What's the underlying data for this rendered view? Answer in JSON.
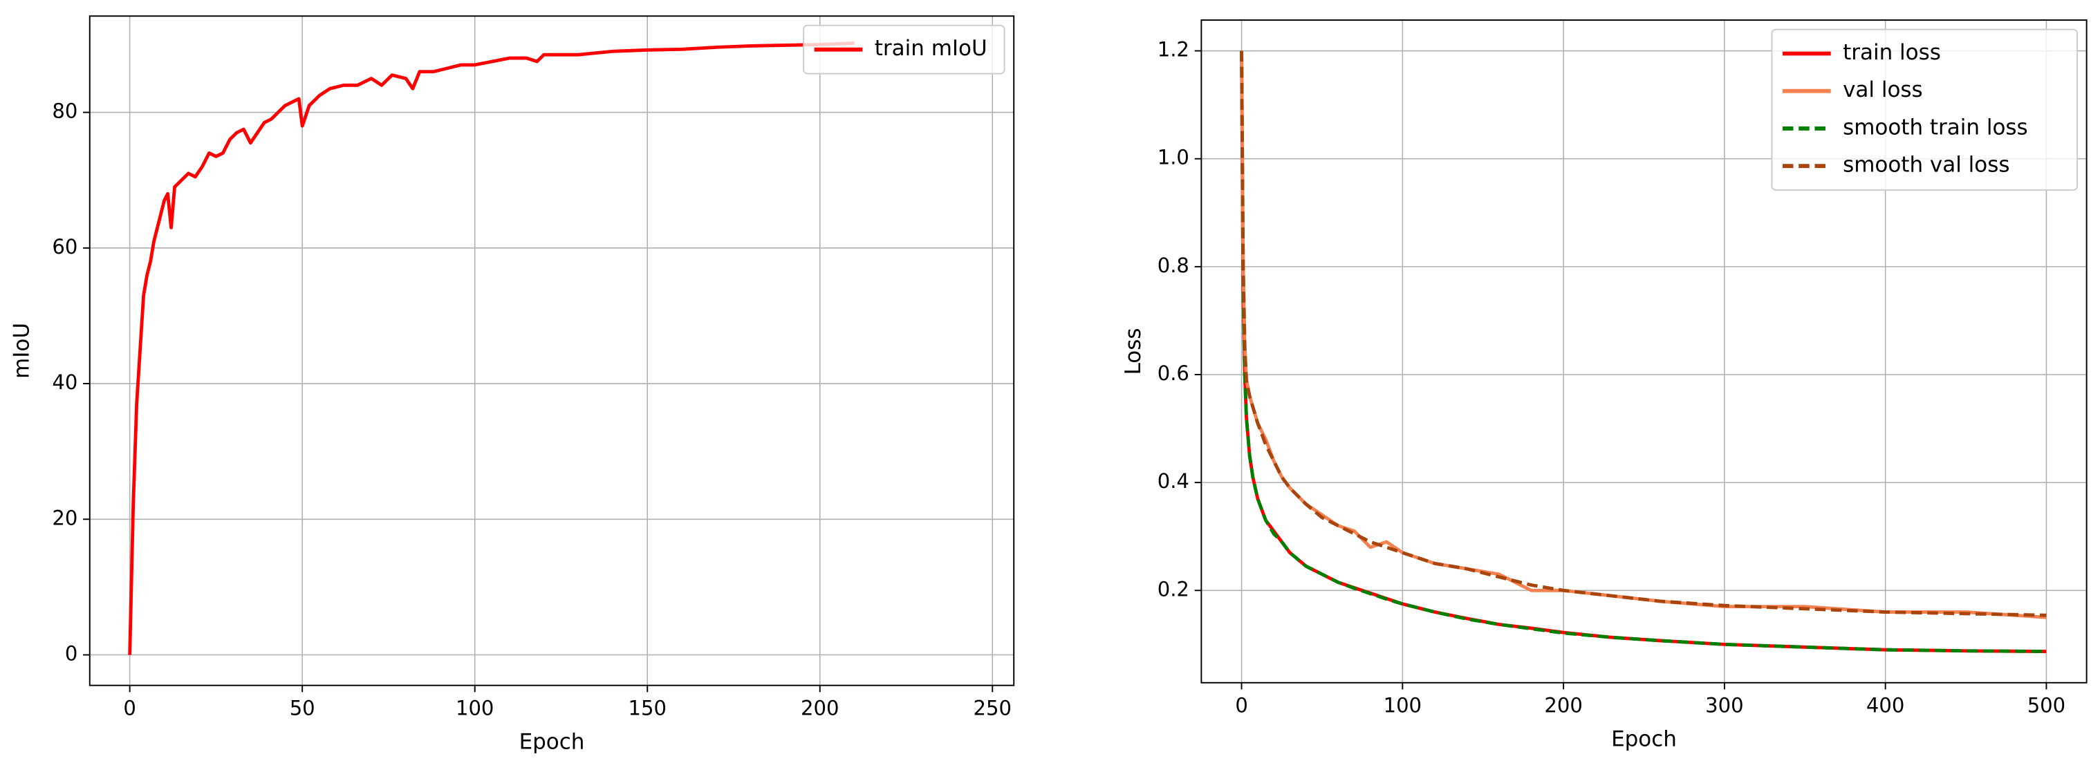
{
  "chart_data": [
    {
      "type": "line",
      "xlabel": "Epoch",
      "ylabel": "mIoU",
      "xlim": [
        -11.6,
        256.2
      ],
      "ylim": [
        -4.5,
        94.2
      ],
      "xticks": [
        0,
        50,
        100,
        150,
        200,
        250
      ],
      "yticks": [
        0,
        20,
        40,
        60,
        80
      ],
      "grid": true,
      "legend": "upper right",
      "x": [
        0,
        1,
        2,
        3,
        4,
        5,
        6,
        7,
        8,
        9,
        10,
        11,
        12,
        13,
        15,
        17,
        19,
        21,
        23,
        25,
        27,
        29,
        31,
        33,
        35,
        37,
        39,
        41,
        43,
        45,
        47,
        49,
        50,
        52,
        55,
        58,
        62,
        66,
        70,
        73,
        76,
        80,
        82,
        84,
        88,
        92,
        96,
        100,
        105,
        110,
        115,
        118,
        120,
        130,
        140,
        150,
        160,
        170,
        180,
        190,
        200,
        210
      ],
      "series": [
        {
          "name": "train mIoU",
          "color": "#ff0000",
          "dashed": false,
          "values": [
            0,
            22,
            37,
            45,
            53,
            56,
            58,
            61,
            63,
            65,
            67,
            68,
            63,
            69,
            70,
            71,
            70.5,
            72,
            74,
            73.5,
            74,
            76,
            77,
            77.5,
            75.5,
            77,
            78.5,
            79,
            80,
            81,
            81.5,
            82,
            78,
            81,
            82.5,
            83.5,
            84,
            84,
            85,
            84,
            85.5,
            85,
            83.5,
            86,
            86,
            86.5,
            87,
            87,
            87.5,
            88,
            88,
            87.5,
            88.5,
            88.5,
            89,
            89.2,
            89.3,
            89.6,
            89.8,
            89.9,
            90,
            90.2
          ]
        }
      ]
    },
    {
      "type": "line",
      "xlabel": "Epoch",
      "ylabel": "Loss",
      "xlim": [
        -25,
        525
      ],
      "ylim": [
        0.029,
        1.257
      ],
      "xticks": [
        0,
        100,
        200,
        300,
        400,
        500
      ],
      "yticks": [
        0.2,
        0.4,
        0.6,
        0.8,
        {
          "value": 1,
          "label": "1.0"
        },
        1.2
      ],
      "grid": true,
      "legend": "upper right",
      "x": [
        0,
        1,
        2,
        3,
        5,
        7,
        10,
        15,
        20,
        25,
        30,
        40,
        50,
        60,
        70,
        80,
        90,
        100,
        120,
        140,
        160,
        180,
        200,
        230,
        260,
        300,
        350,
        400,
        450,
        500
      ],
      "series": [
        {
          "name": "train loss",
          "color": "#ff0000",
          "dashed": false,
          "values": [
            1.2,
            0.75,
            0.6,
            0.52,
            0.45,
            0.41,
            0.37,
            0.33,
            0.31,
            0.29,
            0.27,
            0.245,
            0.23,
            0.215,
            0.205,
            0.195,
            0.185,
            0.175,
            0.16,
            0.148,
            0.137,
            0.13,
            0.122,
            0.113,
            0.107,
            0.1,
            0.095,
            0.09,
            0.088,
            0.087
          ]
        },
        {
          "name": "val loss",
          "color": "#f4814f",
          "dashed": false,
          "values": [
            1.2,
            0.8,
            0.65,
            0.59,
            0.56,
            0.54,
            0.51,
            0.48,
            0.44,
            0.41,
            0.39,
            0.36,
            0.34,
            0.32,
            0.31,
            0.28,
            0.29,
            0.27,
            0.25,
            0.24,
            0.23,
            0.2,
            0.2,
            0.19,
            0.18,
            0.17,
            0.17,
            0.16,
            0.16,
            0.15
          ]
        },
        {
          "name": "smooth train loss",
          "color": "#008000",
          "dashed": true,
          "values": [
            1.2,
            0.75,
            0.6,
            0.52,
            0.45,
            0.41,
            0.37,
            0.33,
            0.305,
            0.29,
            0.27,
            0.245,
            0.23,
            0.215,
            0.204,
            0.194,
            0.184,
            0.175,
            0.16,
            0.147,
            0.137,
            0.129,
            0.121,
            0.113,
            0.107,
            0.1,
            0.095,
            0.09,
            0.088,
            0.087
          ]
        },
        {
          "name": "smooth val loss",
          "color": "#a8440c",
          "dashed": true,
          "values": [
            1.2,
            0.8,
            0.65,
            0.59,
            0.56,
            0.54,
            0.51,
            0.47,
            0.44,
            0.41,
            0.39,
            0.36,
            0.335,
            0.32,
            0.305,
            0.29,
            0.28,
            0.27,
            0.25,
            0.24,
            0.225,
            0.21,
            0.2,
            0.19,
            0.18,
            0.172,
            0.166,
            0.16,
            0.157,
            0.154
          ]
        }
      ]
    }
  ]
}
